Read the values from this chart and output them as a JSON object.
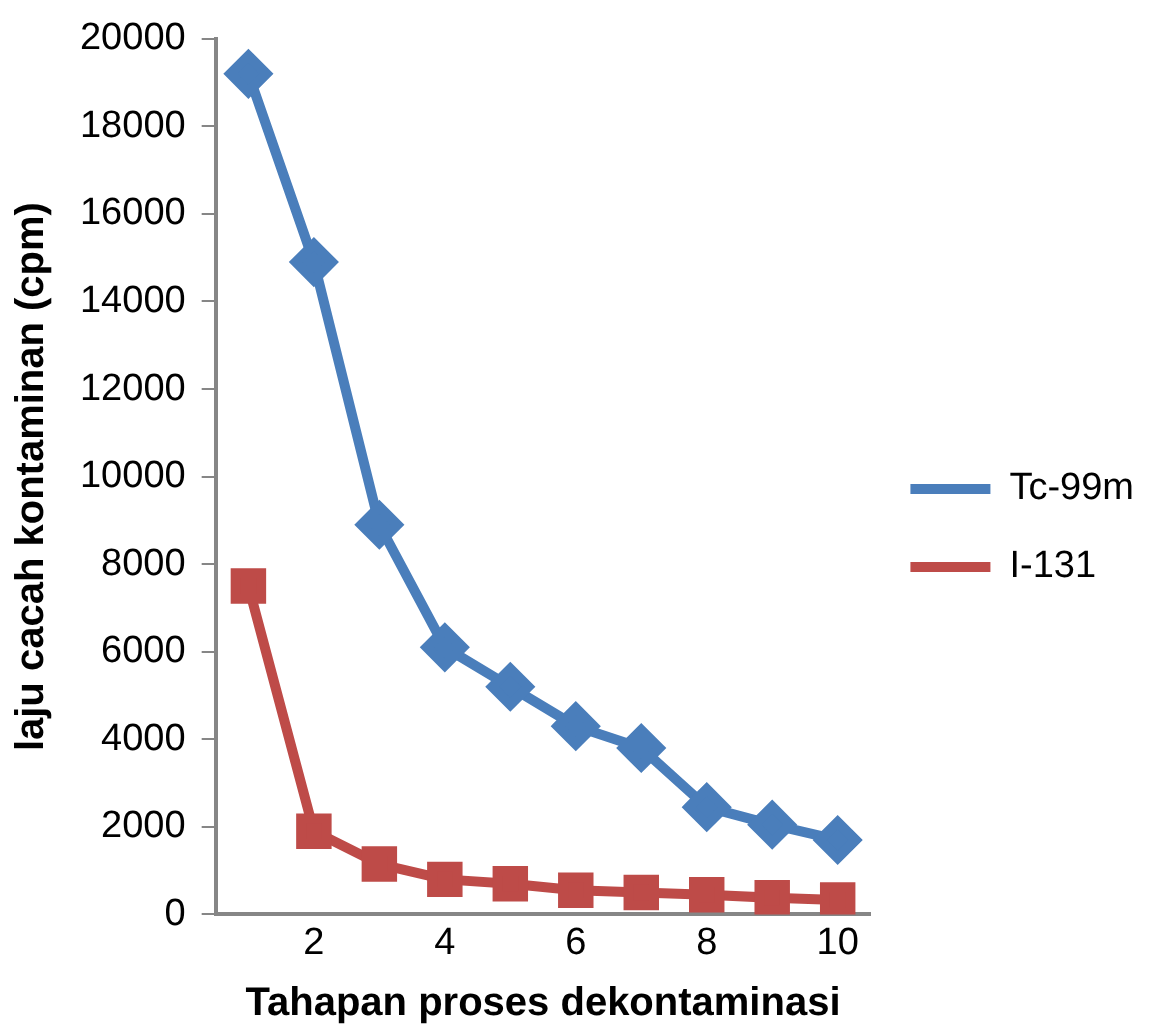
{
  "chart_data": {
    "type": "line",
    "xlabel": "Tahapan proses dekontaminasi",
    "ylabel": "laju cacah kontaminan (cpm)",
    "x": [
      1,
      2,
      3,
      4,
      5,
      6,
      7,
      8,
      9,
      10
    ],
    "xlim": [
      0.5,
      10.5
    ],
    "xticks": [
      2,
      4,
      6,
      8,
      10
    ],
    "ylim": [
      0,
      20000
    ],
    "yticks": [
      0,
      2000,
      4000,
      6000,
      8000,
      10000,
      12000,
      14000,
      16000,
      18000,
      20000
    ],
    "series": [
      {
        "name": "Tc-99m",
        "color": "#4a7ebb",
        "marker": "diamond",
        "values": [
          19200,
          14900,
          8900,
          6100,
          5200,
          4300,
          3800,
          2450,
          2050,
          1700
        ]
      },
      {
        "name": "I-131",
        "color": "#be4b48",
        "marker": "square",
        "values": [
          7500,
          1900,
          1150,
          800,
          700,
          550,
          500,
          450,
          380,
          330
        ]
      }
    ],
    "grid": false,
    "legend": "right",
    "line_style": "solid"
  }
}
